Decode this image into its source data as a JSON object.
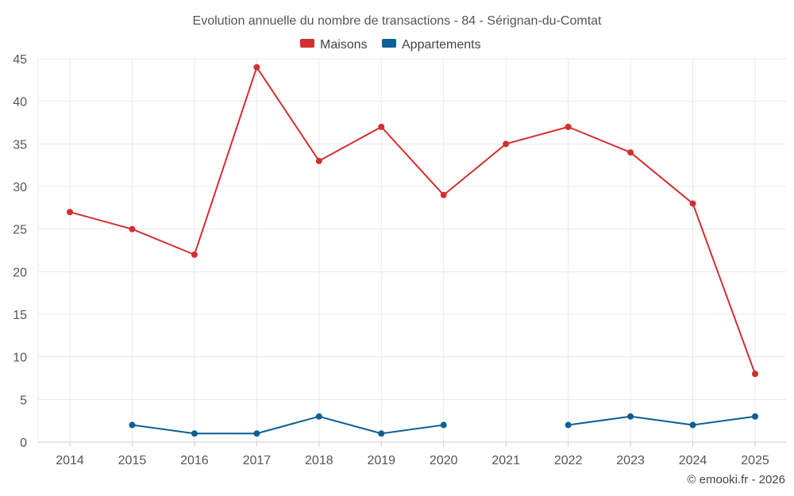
{
  "chart_data": {
    "type": "line",
    "title": "Evolution annuelle du nombre de transactions - 84 - Sérignan-du-Comtat",
    "categories": [
      "2014",
      "2015",
      "2016",
      "2017",
      "2018",
      "2019",
      "2020",
      "2021",
      "2022",
      "2023",
      "2024",
      "2025"
    ],
    "series": [
      {
        "name": "Maisons",
        "color": "#d32f2f",
        "values": [
          27,
          25,
          22,
          44,
          33,
          37,
          29,
          35,
          37,
          34,
          28,
          8
        ]
      },
      {
        "name": "Appartements",
        "color": "#0d5f94",
        "values": [
          null,
          2,
          1,
          1,
          3,
          1,
          2,
          null,
          2,
          3,
          2,
          3
        ]
      }
    ],
    "ylim": [
      0,
      45
    ],
    "yticks": [
      0,
      5,
      10,
      15,
      20,
      25,
      30,
      35,
      40,
      45
    ],
    "grid": true,
    "legend_position": "top-center",
    "xlabel": "",
    "ylabel": ""
  },
  "credit": "© emooki.fr - 2026"
}
